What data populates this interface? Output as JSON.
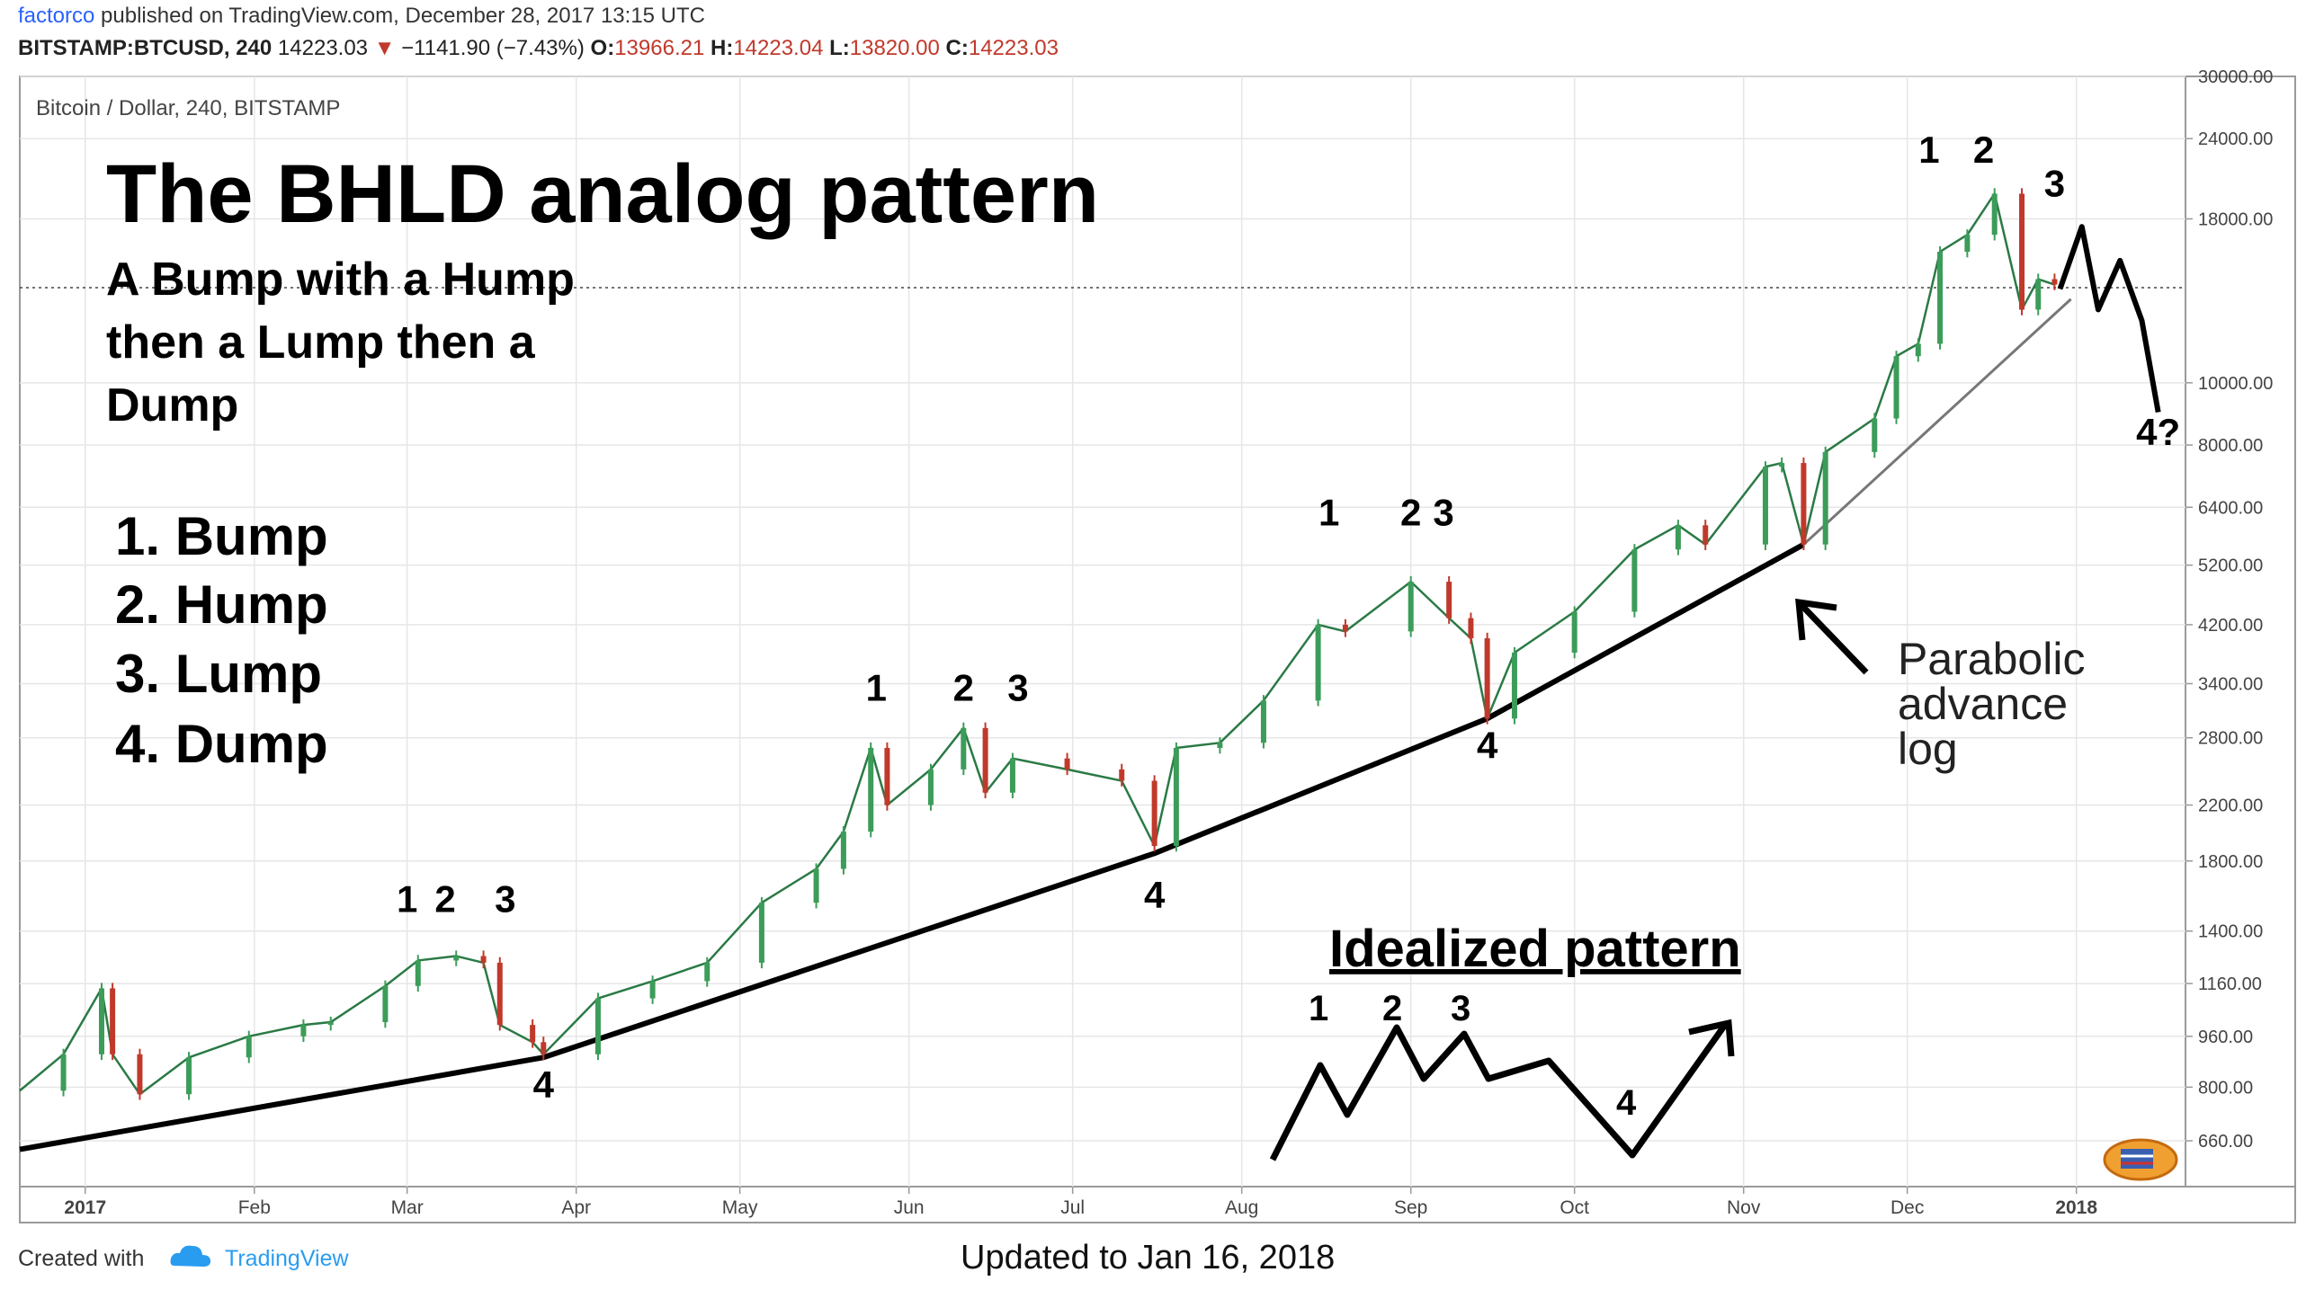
{
  "header": {
    "author": "factorco",
    "published_text": "published on TradingView.com, December 28, 2017 13:15 UTC",
    "symbol": "BITSTAMP:BTCUSD, 240",
    "last_price": "14223.03",
    "change": "−1141.90 (−7.43%)",
    "open_label": "O:",
    "open": "13966.21",
    "high_label": "H:",
    "high": "14223.04",
    "low_label": "L:",
    "low": "13820.00",
    "close_label": "C:",
    "close": "14223.03"
  },
  "chart_data": {
    "type": "line",
    "title": "The BHLD analog pattern",
    "subtitle_lines": [
      "A Bump with a Hump",
      "then a Lump then a",
      "Dump"
    ],
    "legend_list": [
      "1. Bump",
      "2. Hump",
      "3. Lump",
      "4. Dump"
    ],
    "pane_label": "Bitcoin / Dollar, 240, BITSTAMP",
    "y_scale": "log",
    "ylim": [
      560,
      30000
    ],
    "y_ticks": [
      {
        "v": 30000,
        "t": "30000.00"
      },
      {
        "v": 24000,
        "t": "24000.00"
      },
      {
        "v": 18000,
        "t": "18000.00"
      },
      {
        "v": 10000,
        "t": "10000.00"
      },
      {
        "v": 8000,
        "t": "8000.00"
      },
      {
        "v": 6400,
        "t": "6400.00"
      },
      {
        "v": 5200,
        "t": "5200.00"
      },
      {
        "v": 4200,
        "t": "4200.00"
      },
      {
        "v": 3400,
        "t": "3400.00"
      },
      {
        "v": 2800,
        "t": "2800.00"
      },
      {
        "v": 2200,
        "t": "2200.00"
      },
      {
        "v": 1800,
        "t": "1800.00"
      },
      {
        "v": 1400,
        "t": "1400.00"
      },
      {
        "v": 1160,
        "t": "1160.00"
      },
      {
        "v": 960,
        "t": "960.00"
      },
      {
        "v": 800,
        "t": "800.00"
      },
      {
        "v": 660,
        "t": "660.00"
      }
    ],
    "x_ticks": [
      {
        "d": "2017-01-01",
        "t": "2017"
      },
      {
        "d": "2017-02-01",
        "t": "Feb"
      },
      {
        "d": "2017-03-01",
        "t": "Mar"
      },
      {
        "d": "2017-04-01",
        "t": "Apr"
      },
      {
        "d": "2017-05-01",
        "t": "May"
      },
      {
        "d": "2017-06-01",
        "t": "Jun"
      },
      {
        "d": "2017-07-01",
        "t": "Jul"
      },
      {
        "d": "2017-08-01",
        "t": "Aug"
      },
      {
        "d": "2017-09-01",
        "t": "Sep"
      },
      {
        "d": "2017-10-01",
        "t": "Oct"
      },
      {
        "d": "2017-11-01",
        "t": "Nov"
      },
      {
        "d": "2017-12-01",
        "t": "Dec"
      },
      {
        "d": "2018-01-01",
        "t": "2018"
      }
    ],
    "price_series": [
      [
        "2016-12-20",
        790
      ],
      [
        "2016-12-28",
        900
      ],
      [
        "2017-01-04",
        1140
      ],
      [
        "2017-01-06",
        900
      ],
      [
        "2017-01-11",
        780
      ],
      [
        "2017-01-20",
        890
      ],
      [
        "2017-01-31",
        960
      ],
      [
        "2017-02-10",
        1000
      ],
      [
        "2017-02-15",
        1010
      ],
      [
        "2017-02-25",
        1150
      ],
      [
        "2017-03-03",
        1260
      ],
      [
        "2017-03-10",
        1280
      ],
      [
        "2017-03-15",
        1250
      ],
      [
        "2017-03-18",
        1000
      ],
      [
        "2017-03-24",
        940
      ],
      [
        "2017-03-26",
        900
      ],
      [
        "2017-04-05",
        1100
      ],
      [
        "2017-04-15",
        1170
      ],
      [
        "2017-04-25",
        1250
      ],
      [
        "2017-05-05",
        1550
      ],
      [
        "2017-05-15",
        1750
      ],
      [
        "2017-05-20",
        2000
      ],
      [
        "2017-05-25",
        2700
      ],
      [
        "2017-05-28",
        2200
      ],
      [
        "2017-06-05",
        2500
      ],
      [
        "2017-06-11",
        2900
      ],
      [
        "2017-06-15",
        2300
      ],
      [
        "2017-06-20",
        2600
      ],
      [
        "2017-06-30",
        2500
      ],
      [
        "2017-07-10",
        2400
      ],
      [
        "2017-07-16",
        1900
      ],
      [
        "2017-07-20",
        2700
      ],
      [
        "2017-07-28",
        2750
      ],
      [
        "2017-08-05",
        3200
      ],
      [
        "2017-08-15",
        4200
      ],
      [
        "2017-08-20",
        4100
      ],
      [
        "2017-09-01",
        4900
      ],
      [
        "2017-09-08",
        4300
      ],
      [
        "2017-09-12",
        4000
      ],
      [
        "2017-09-15",
        3000
      ],
      [
        "2017-09-20",
        3800
      ],
      [
        "2017-10-01",
        4400
      ],
      [
        "2017-10-12",
        5500
      ],
      [
        "2017-10-20",
        6000
      ],
      [
        "2017-10-25",
        5600
      ],
      [
        "2017-11-05",
        7400
      ],
      [
        "2017-11-08",
        7500
      ],
      [
        "2017-11-12",
        5600
      ],
      [
        "2017-11-16",
        7800
      ],
      [
        "2017-11-25",
        8800
      ],
      [
        "2017-11-29",
        11000
      ],
      [
        "2017-12-03",
        11500
      ],
      [
        "2017-12-07",
        16000
      ],
      [
        "2017-12-12",
        17000
      ],
      [
        "2017-12-17",
        19700
      ],
      [
        "2017-12-22",
        13000
      ],
      [
        "2017-12-25",
        14500
      ],
      [
        "2017-12-28",
        14223
      ]
    ],
    "trendline": [
      [
        "2016-12-20",
        640
      ],
      [
        "2017-03-26",
        890
      ],
      [
        "2017-07-16",
        1850
      ],
      [
        "2017-09-15",
        3000
      ],
      [
        "2017-11-12",
        5600
      ]
    ],
    "log_trendline": [
      [
        "2017-11-12",
        5600
      ],
      [
        "2017-12-31",
        13500
      ]
    ],
    "projection": [
      [
        "2017-12-29",
        14000
      ],
      [
        "2018-01-02",
        17500
      ],
      [
        "2018-01-05",
        13000
      ],
      [
        "2018-01-09",
        15500
      ],
      [
        "2018-01-13",
        12500
      ],
      [
        "2018-01-16",
        9000
      ]
    ],
    "labels": [
      {
        "t": "1",
        "d": "2017-03-01",
        "v": 1500
      },
      {
        "t": "2",
        "d": "2017-03-08",
        "v": 1500
      },
      {
        "t": "3",
        "d": "2017-03-19",
        "v": 1500
      },
      {
        "t": "4",
        "d": "2017-03-26",
        "v": 770
      },
      {
        "t": "1",
        "d": "2017-05-26",
        "v": 3200
      },
      {
        "t": "2",
        "d": "2017-06-11",
        "v": 3200
      },
      {
        "t": "3",
        "d": "2017-06-21",
        "v": 3200
      },
      {
        "t": "4",
        "d": "2017-07-16",
        "v": 1520
      },
      {
        "t": "1",
        "d": "2017-08-17",
        "v": 6000
      },
      {
        "t": "2",
        "d": "2017-09-01",
        "v": 6000
      },
      {
        "t": "3",
        "d": "2017-09-07",
        "v": 6000
      },
      {
        "t": "4",
        "d": "2017-09-15",
        "v": 2600
      },
      {
        "t": "1",
        "d": "2017-12-05",
        "v": 22000
      },
      {
        "t": "2",
        "d": "2017-12-15",
        "v": 22000
      },
      {
        "t": "3",
        "d": "2017-12-28",
        "v": 19500
      },
      {
        "t": "4?",
        "d": "2018-01-16",
        "v": 8000
      }
    ],
    "annotation": [
      "Parabolic",
      "advance",
      "log"
    ],
    "idealized_title": "Idealized pattern",
    "idealized_labels": [
      "1",
      "2",
      "3",
      "4"
    ]
  },
  "footer": {
    "created_with": "Created with",
    "brand": "TradingView",
    "updated": "Updated to Jan 16, 2018"
  },
  "colors": {
    "candle_up": "#3c9c59",
    "candle_down": "#c0392b",
    "price_line": "#2a7a45",
    "grid": "#e6e6e6",
    "text": "#000000",
    "axis_text": "#444444",
    "brand": "#2a9cf0"
  }
}
